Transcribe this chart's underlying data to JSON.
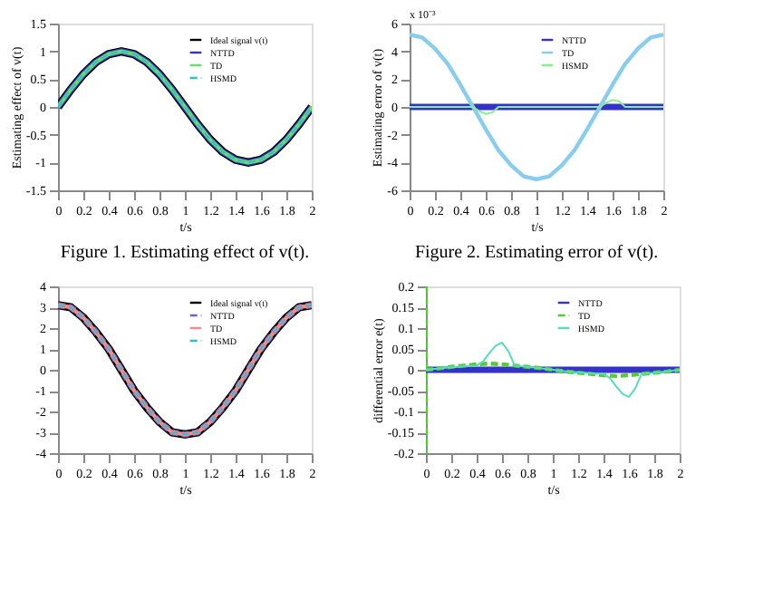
{
  "chart_data": [
    {
      "type": "line",
      "xlabel": "t/s",
      "ylabel": "Estimating effect of v(t)",
      "annotations": [
        "Figure 1. Estimating effect of v(t)."
      ],
      "legend": "top right",
      "grid": false,
      "x": [
        0,
        0.1,
        0.2,
        0.3,
        0.4,
        0.5,
        0.6,
        0.7,
        0.8,
        0.9,
        1,
        1.1,
        1.2,
        1.3,
        1.4,
        1.5,
        1.6,
        1.7,
        1.8,
        1.9,
        2
      ],
      "xlim": [
        0,
        2
      ],
      "xticks": [
        0,
        0.2,
        0.4,
        0.6,
        0.8,
        1,
        1.2,
        1.4,
        1.6,
        1.8,
        2
      ],
      "ylim": [
        -1.5,
        1.5
      ],
      "yticks": [
        -1.5,
        -1,
        -0.5,
        0,
        0.5,
        1,
        1.5
      ],
      "series": [
        {
          "name": "Ideal signal v(t)",
          "color": "#000000",
          "line_style": "solid",
          "values": [
            0,
            0.31,
            0.59,
            0.81,
            0.95,
            1,
            0.95,
            0.81,
            0.59,
            0.31,
            0,
            -0.31,
            -0.59,
            -0.81,
            -0.95,
            -1,
            -0.95,
            -0.81,
            -0.59,
            -0.31,
            0
          ]
        },
        {
          "name": "NTTD",
          "color": "#3333cc",
          "line_style": "solid",
          "values": [
            0,
            0.31,
            0.59,
            0.81,
            0.95,
            1,
            0.95,
            0.81,
            0.59,
            0.31,
            0,
            -0.31,
            -0.59,
            -0.81,
            -0.95,
            -1,
            -0.95,
            -0.81,
            -0.59,
            -0.31,
            0
          ]
        },
        {
          "name": "TD",
          "color": "#66dd66",
          "line_style": "solid",
          "values": [
            0,
            0.31,
            0.59,
            0.81,
            0.95,
            1,
            0.95,
            0.81,
            0.59,
            0.31,
            0,
            -0.31,
            -0.59,
            -0.81,
            -0.95,
            -1,
            -0.95,
            -0.81,
            -0.59,
            -0.31,
            0
          ]
        },
        {
          "name": "HSMD",
          "color": "#33bbcc",
          "line_style": "dashed",
          "values": [
            0,
            0.31,
            0.59,
            0.81,
            0.95,
            1,
            0.95,
            0.81,
            0.59,
            0.31,
            0,
            -0.31,
            -0.59,
            -0.81,
            -0.95,
            -1,
            -0.95,
            -0.81,
            -0.59,
            -0.31,
            0
          ]
        }
      ]
    },
    {
      "type": "line",
      "xlabel": "t/s",
      "ylabel": "Estimating error of v(t)",
      "annotations": [
        "x 10⁻³",
        "Figure 2. Estimating error of v(t)."
      ],
      "legend": "top right",
      "grid": false,
      "x": [
        0,
        0.1,
        0.2,
        0.3,
        0.4,
        0.5,
        0.6,
        0.7,
        0.8,
        0.9,
        1,
        1.1,
        1.2,
        1.3,
        1.4,
        1.5,
        1.6,
        1.7,
        1.8,
        1.9,
        2
      ],
      "xlim": [
        0,
        2
      ],
      "xticks": [
        0,
        0.2,
        0.4,
        0.6,
        0.8,
        1,
        1.2,
        1.4,
        1.6,
        1.8,
        2
      ],
      "ylim": [
        -6,
        6
      ],
      "yticks": [
        -6,
        -4,
        -2,
        0,
        2,
        4,
        6
      ],
      "series": [
        {
          "name": "NTTD",
          "color": "#3333cc",
          "line_style": "solid",
          "x": [
            0,
            2
          ],
          "values": [
            0,
            0
          ]
        },
        {
          "name": "TD",
          "color": "#88ccee",
          "line_style": "solid",
          "values": [
            5.2,
            5,
            4.2,
            3.1,
            1.6,
            0,
            -1.6,
            -3.1,
            -4.2,
            -5,
            -5.2,
            -5,
            -4.2,
            -3.1,
            -1.6,
            0,
            1.6,
            3.1,
            4.2,
            5,
            5.2
          ]
        },
        {
          "name": "HSMD",
          "color": "#88ee88",
          "line_style": "solid",
          "x": [
            0,
            0.5,
            0.55,
            0.6,
            0.65,
            0.7,
            1.5,
            1.55,
            1.6,
            1.65,
            1.7,
            2
          ],
          "values": [
            0,
            0,
            -0.3,
            -0.5,
            -0.4,
            0,
            0,
            0.3,
            0.5,
            0.4,
            0,
            0
          ]
        }
      ]
    },
    {
      "type": "line",
      "xlabel": "t/s",
      "legend": "top right",
      "grid": false,
      "x": [
        0,
        0.1,
        0.2,
        0.3,
        0.4,
        0.5,
        0.6,
        0.7,
        0.8,
        0.9,
        1,
        1.1,
        1.2,
        1.3,
        1.4,
        1.5,
        1.6,
        1.7,
        1.8,
        1.9,
        2
      ],
      "xlim": [
        0,
        2
      ],
      "xticks": [
        0,
        0.2,
        0.4,
        0.6,
        0.8,
        1,
        1.2,
        1.4,
        1.6,
        1.8,
        2
      ],
      "ylim": [
        -4,
        4
      ],
      "yticks": [
        -4,
        -3,
        -2,
        -1,
        0,
        1,
        2,
        3,
        4
      ],
      "series": [
        {
          "name": "Ideal signal v(t)",
          "color": "#000000",
          "line_style": "solid",
          "values": [
            3.1,
            3,
            2.5,
            1.8,
            1,
            0,
            -1,
            -1.8,
            -2.5,
            -3,
            -3.1,
            -3,
            -2.5,
            -1.8,
            -1,
            0,
            1,
            1.8,
            2.5,
            3,
            3.1
          ]
        },
        {
          "name": "NTTD",
          "color": "#6666cc",
          "line_style": "dashed",
          "values": [
            3.1,
            3,
            2.5,
            1.8,
            1,
            0,
            -1,
            -1.8,
            -2.5,
            -3,
            -3.1,
            -3,
            -2.5,
            -1.8,
            -1,
            0,
            1,
            1.8,
            2.5,
            3,
            3.1
          ]
        },
        {
          "name": "TD",
          "color": "#ff8888",
          "line_style": "solid",
          "values": [
            3.1,
            3,
            2.5,
            1.8,
            1,
            0,
            -1,
            -1.8,
            -2.5,
            -3,
            -3.1,
            -3,
            -2.5,
            -1.8,
            -1,
            0,
            1,
            1.8,
            2.5,
            3,
            3.1
          ]
        },
        {
          "name": "HSMD",
          "color": "#33bbcc",
          "line_style": "dashed",
          "values": [
            3.1,
            3,
            2.5,
            1.8,
            1,
            0,
            -1,
            -1.8,
            -2.5,
            -3,
            -3.1,
            -3,
            -2.5,
            -1.8,
            -1,
            0,
            1,
            1.8,
            2.5,
            3,
            3.1
          ]
        }
      ]
    },
    {
      "type": "line",
      "xlabel": "t/s",
      "ylabel": "differential error e(t)",
      "legend": "top right",
      "grid": false,
      "xlim": [
        0,
        2
      ],
      "xticks": [
        0,
        0.2,
        0.4,
        0.6,
        0.8,
        1,
        1.2,
        1.4,
        1.6,
        1.8,
        2
      ],
      "ylim": [
        -0.2,
        0.2
      ],
      "yticks": [
        -0.2,
        -0.15,
        -0.1,
        -0.05,
        0,
        0.05,
        0.1,
        0.15,
        0.2
      ],
      "series": [
        {
          "name": "NTTD",
          "color": "#3333cc",
          "line_style": "solid",
          "x": [
            0,
            2
          ],
          "values": [
            0,
            0
          ]
        },
        {
          "name": "TD",
          "color": "#55cc33",
          "line_style": "dashed",
          "x": [
            0,
            0,
            0,
            0.1,
            0.2,
            0.3,
            0.4,
            0.5,
            0.6,
            0.7,
            0.8,
            0.9,
            1,
            1.1,
            1.2,
            1.3,
            1.4,
            1.5,
            1.6,
            1.7,
            1.8,
            1.9,
            2
          ],
          "values": [
            0.2,
            -0.2,
            0,
            0.003,
            0.007,
            0.01,
            0.013,
            0.015,
            0.013,
            0.01,
            0.007,
            0.004,
            0,
            -0.004,
            -0.007,
            -0.01,
            -0.013,
            -0.015,
            -0.013,
            -0.01,
            -0.007,
            -0.004,
            0
          ]
        },
        {
          "name": "HSMD",
          "color": "#55ddbb",
          "line_style": "solid",
          "x": [
            0,
            0.1,
            0.2,
            0.3,
            0.4,
            0.45,
            0.5,
            0.55,
            0.6,
            0.65,
            0.7,
            0.8,
            0.9,
            1,
            1.1,
            1.2,
            1.3,
            1.4,
            1.45,
            1.5,
            1.55,
            1.6,
            1.65,
            1.7,
            1.8,
            1.9,
            2
          ],
          "values": [
            0,
            0.003,
            0.006,
            0.008,
            0.01,
            0.02,
            0.04,
            0.058,
            0.065,
            0.045,
            0.01,
            0.007,
            0.004,
            0,
            -0.004,
            -0.006,
            -0.008,
            -0.01,
            -0.02,
            -0.04,
            -0.058,
            -0.065,
            -0.045,
            -0.01,
            -0.007,
            -0.004,
            0
          ]
        }
      ]
    }
  ]
}
